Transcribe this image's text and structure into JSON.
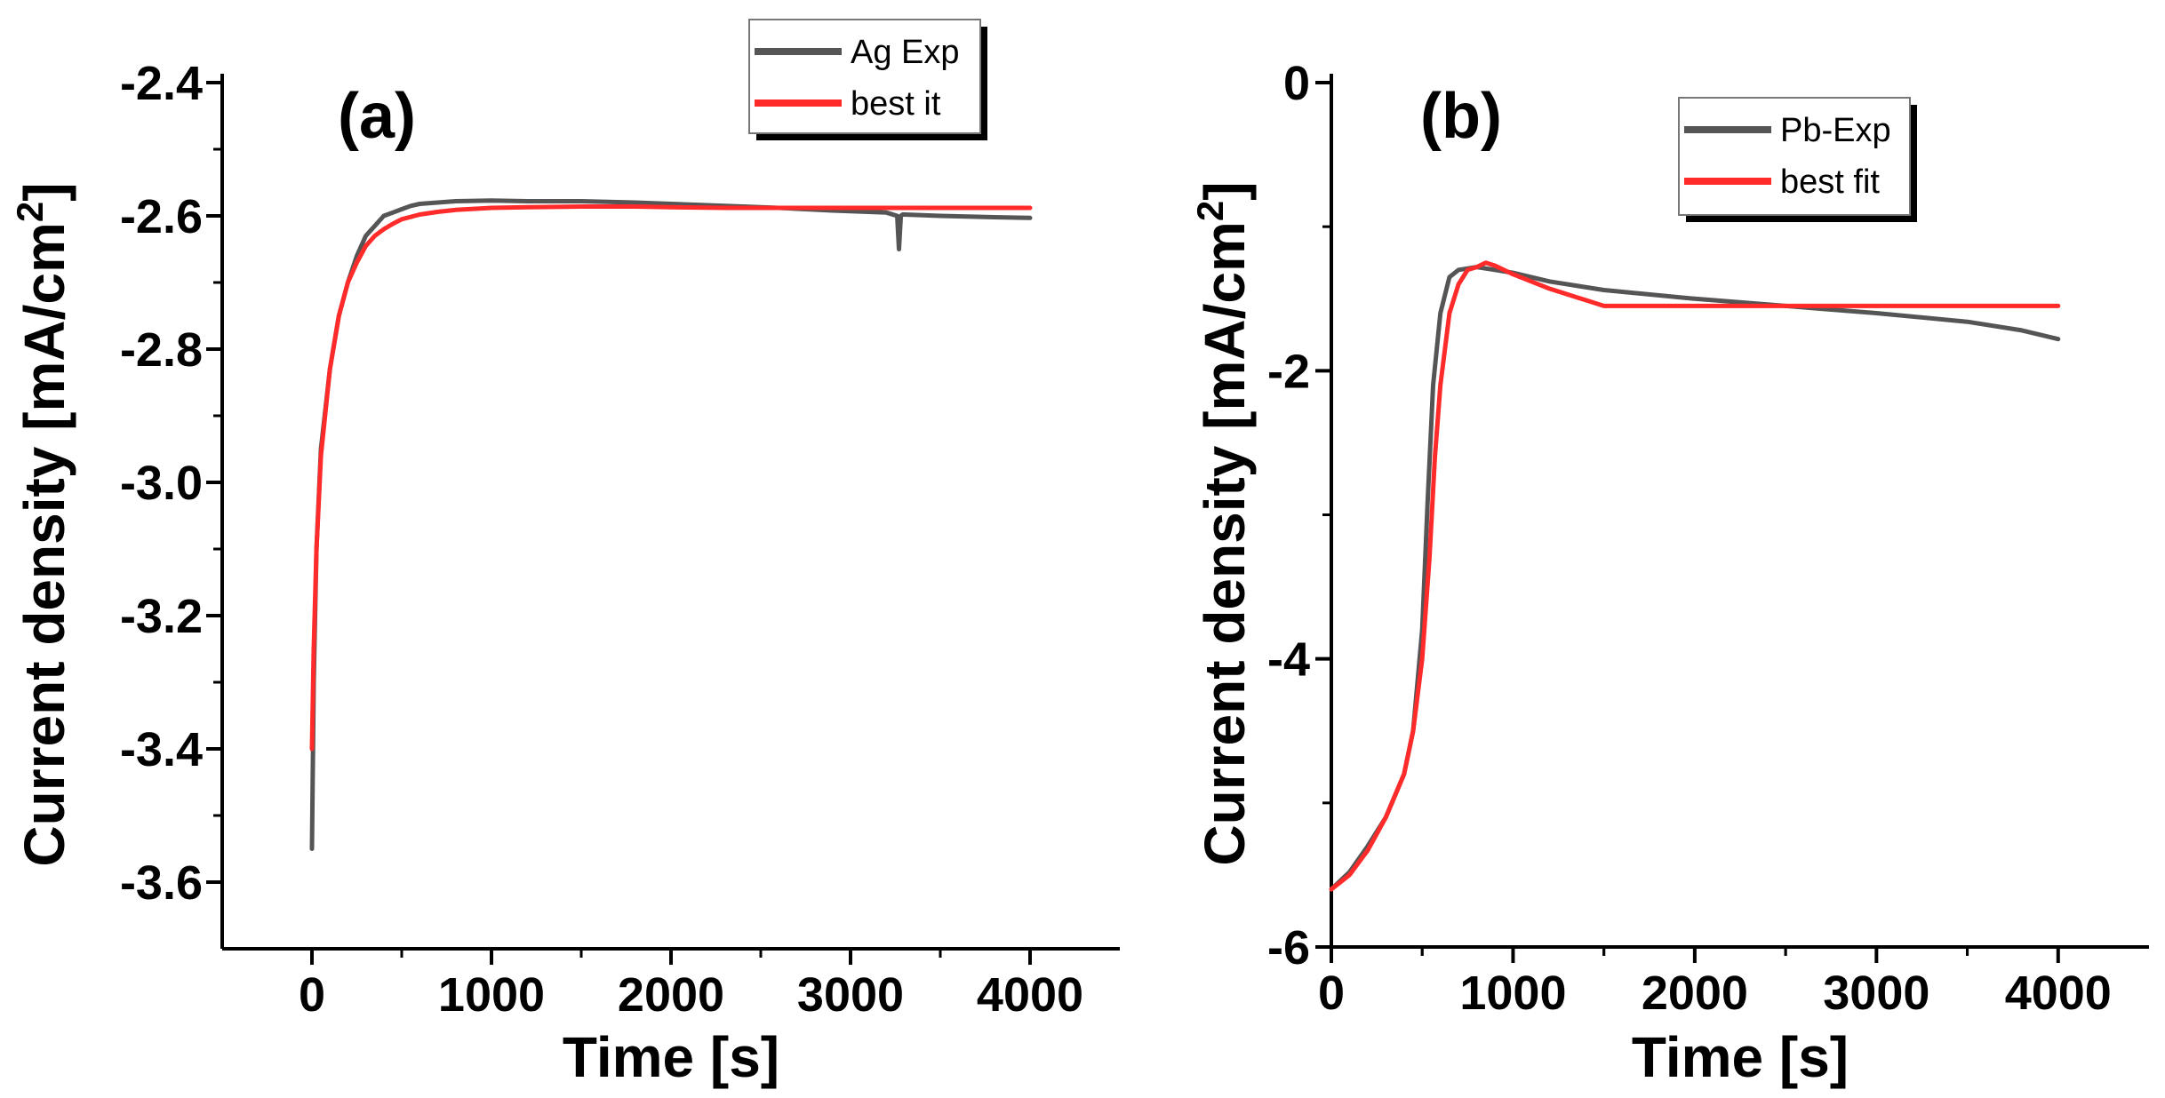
{
  "chart_data": [
    {
      "type": "line",
      "panel_label": "(a)",
      "xlabel": "Time [s]",
      "ylabel_main": "Current density [mA/cm",
      "ylabel_sup": "2",
      "ylabel_end": "]",
      "xlim": [
        -500,
        4500
      ],
      "ylim": [
        -3.7,
        -2.4
      ],
      "xticks": [
        0,
        1000,
        2000,
        3000,
        4000
      ],
      "xtick_labels": [
        "0",
        "1000",
        "2000",
        "3000",
        "4000"
      ],
      "yticks": [
        -2.4,
        -2.6,
        -2.8,
        -3.0,
        -3.2,
        -3.4,
        -3.6
      ],
      "ytick_labels": [
        "-2.4",
        "-2.6",
        "-2.8",
        "-3.0",
        "-3.2",
        "-3.4",
        "-3.6"
      ],
      "legend_position": "top-right",
      "series": [
        {
          "name": "Ag Exp",
          "color": "#555555",
          "x": [
            0,
            10,
            25,
            50,
            100,
            150,
            200,
            250,
            300,
            350,
            400,
            450,
            500,
            550,
            600,
            700,
            800,
            1000,
            1200,
            1500,
            1800,
            2000,
            2300,
            2600,
            2900,
            3200,
            3260,
            3270,
            3280,
            3290,
            3300,
            3500,
            3800,
            4000
          ],
          "y": [
            -3.55,
            -3.3,
            -3.1,
            -2.95,
            -2.83,
            -2.75,
            -2.7,
            -2.66,
            -2.63,
            -2.615,
            -2.6,
            -2.595,
            -2.59,
            -2.585,
            -2.582,
            -2.58,
            -2.578,
            -2.577,
            -2.578,
            -2.578,
            -2.58,
            -2.582,
            -2.585,
            -2.588,
            -2.592,
            -2.595,
            -2.6,
            -2.65,
            -2.6,
            -2.598,
            -2.598,
            -2.6,
            -2.602,
            -2.603
          ]
        },
        {
          "name": "best it",
          "color": "#ff2a2a",
          "x": [
            0,
            10,
            25,
            50,
            100,
            150,
            200,
            250,
            300,
            350,
            400,
            450,
            500,
            600,
            700,
            800,
            1000,
            1200,
            1500,
            1800,
            2000,
            2300,
            2600,
            3000,
            3500,
            4000
          ],
          "y": [
            -3.4,
            -3.25,
            -3.1,
            -2.96,
            -2.83,
            -2.75,
            -2.7,
            -2.67,
            -2.645,
            -2.63,
            -2.62,
            -2.612,
            -2.605,
            -2.598,
            -2.594,
            -2.591,
            -2.588,
            -2.587,
            -2.586,
            -2.586,
            -2.587,
            -2.588,
            -2.588,
            -2.588,
            -2.588,
            -2.588
          ]
        }
      ]
    },
    {
      "type": "line",
      "panel_label": "(b)",
      "xlabel": "Time [s]",
      "ylabel_main": "Current density [mA/cm",
      "ylabel_sup": "2",
      "ylabel_end": "]",
      "xlim": [
        0,
        4500
      ],
      "ylim": [
        -6,
        0
      ],
      "xticks": [
        0,
        1000,
        2000,
        3000,
        4000
      ],
      "xtick_labels": [
        "0",
        "1000",
        "2000",
        "3000",
        "4000"
      ],
      "yticks": [
        0,
        -2,
        -4,
        -6
      ],
      "ytick_labels": [
        "0",
        "-2",
        "-4",
        "-6"
      ],
      "legend_position": "top-right",
      "series": [
        {
          "name": "Pb-Exp",
          "color": "#555555",
          "x": [
            0,
            100,
            200,
            300,
            400,
            450,
            500,
            530,
            560,
            600,
            650,
            700,
            800,
            900,
            1000,
            1200,
            1500,
            2000,
            2500,
            3000,
            3500,
            3800,
            4000
          ],
          "y": [
            -5.6,
            -5.48,
            -5.3,
            -5.1,
            -4.8,
            -4.5,
            -3.8,
            -2.9,
            -2.1,
            -1.6,
            -1.35,
            -1.3,
            -1.28,
            -1.3,
            -1.32,
            -1.38,
            -1.44,
            -1.5,
            -1.55,
            -1.6,
            -1.66,
            -1.72,
            -1.78
          ]
        },
        {
          "name": "best fit",
          "color": "#ff2a2a",
          "x": [
            0,
            100,
            200,
            300,
            400,
            450,
            500,
            540,
            570,
            600,
            650,
            700,
            750,
            800,
            850,
            900,
            1000,
            1200,
            1500,
            2000,
            2500,
            3000,
            3500,
            4000
          ],
          "y": [
            -5.6,
            -5.5,
            -5.33,
            -5.1,
            -4.8,
            -4.5,
            -4.0,
            -3.3,
            -2.6,
            -2.1,
            -1.6,
            -1.4,
            -1.3,
            -1.28,
            -1.25,
            -1.27,
            -1.33,
            -1.43,
            -1.55,
            -1.55,
            -1.55,
            -1.55,
            -1.55,
            -1.55
          ]
        }
      ]
    }
  ]
}
